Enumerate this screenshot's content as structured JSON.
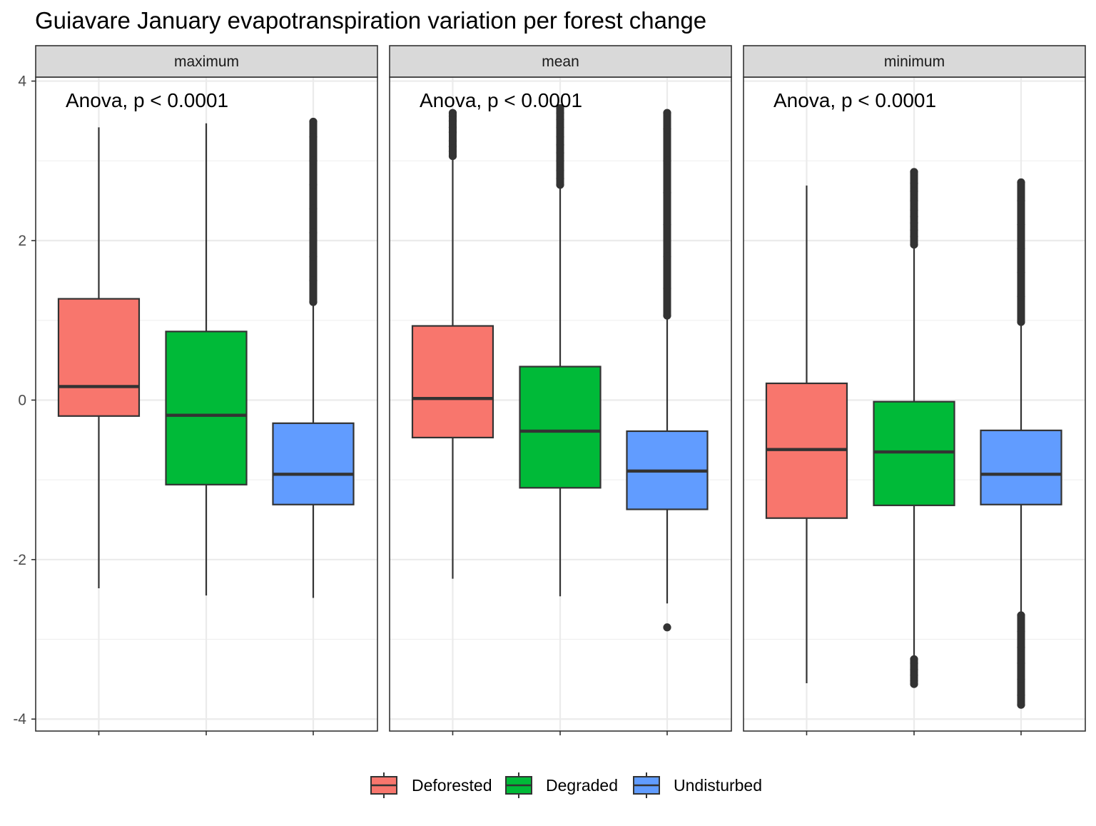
{
  "chart_data": {
    "type": "box",
    "title": "Guiavare January evapotranspiration variation per forest change",
    "xlabel": "",
    "ylabel": "",
    "ylim": [
      -4.15,
      4.05
    ],
    "y_ticks": [
      -4,
      -2,
      0,
      2,
      4
    ],
    "y_tick_labels": [
      "-4",
      "-2",
      "0",
      "2",
      "4"
    ],
    "grid": true,
    "legend_position": "bottom",
    "categories": [
      "Deforested",
      "Degraded",
      "Undisturbed"
    ],
    "colors": {
      "Deforested": "#F8766D",
      "Degraded": "#00BA38",
      "Undisturbed": "#619CFF"
    },
    "panels": [
      {
        "label": "maximum",
        "annotation": "Anova, p < 0.0001",
        "boxes": [
          {
            "group": "Deforested",
            "whisker_low": -2.36,
            "q1": -0.2,
            "median": 0.17,
            "q3": 1.27,
            "whisker_high": 3.42,
            "outliers_low": [],
            "outliers_high": []
          },
          {
            "group": "Degraded",
            "whisker_low": -2.45,
            "q1": -1.06,
            "median": -0.19,
            "q3": 0.86,
            "whisker_high": 3.47,
            "outliers_low": [],
            "outliers_high": []
          },
          {
            "group": "Undisturbed",
            "whisker_low": -2.48,
            "q1": -1.31,
            "median": -0.93,
            "q3": -0.29,
            "whisker_high": 1.23,
            "outliers_low": [],
            "outliers_high": [
              1.23,
              1.5,
              1.8,
              2.1,
              2.4,
              2.7,
              3.0,
              3.3,
              3.49
            ]
          }
        ]
      },
      {
        "label": "mean",
        "annotation": "Anova, p < 0.0001",
        "boxes": [
          {
            "group": "Deforested",
            "whisker_low": -2.24,
            "q1": -0.47,
            "median": 0.02,
            "q3": 0.93,
            "whisker_high": 3.05,
            "outliers_low": [],
            "outliers_high": [
              3.06,
              3.12,
              3.18,
              3.25,
              3.36,
              3.42,
              3.5,
              3.56,
              3.6
            ]
          },
          {
            "group": "Degraded",
            "whisker_low": -2.46,
            "q1": -1.1,
            "median": -0.39,
            "q3": 0.42,
            "whisker_high": 2.68,
            "outliers_low": [],
            "outliers_high": [
              2.7,
              2.78,
              2.88,
              3.0,
              3.1,
              3.2,
              3.3,
              3.42,
              3.52,
              3.6,
              3.66
            ]
          },
          {
            "group": "Undisturbed",
            "whisker_low": -2.55,
            "q1": -1.37,
            "median": -0.89,
            "q3": -0.39,
            "whisker_high": 1.05,
            "outliers_low": [
              -2.85
            ],
            "outliers_high": [
              1.06,
              1.4,
              1.8,
              2.2,
              2.6,
              3.0,
              3.4,
              3.6
            ]
          }
        ]
      },
      {
        "label": "minimum",
        "annotation": "Anova, p < 0.0001",
        "boxes": [
          {
            "group": "Deforested",
            "whisker_low": -3.55,
            "q1": -1.48,
            "median": -0.62,
            "q3": 0.21,
            "whisker_high": 2.69,
            "outliers_low": [],
            "outliers_high": []
          },
          {
            "group": "Degraded",
            "whisker_low": -3.22,
            "q1": -1.32,
            "median": -0.65,
            "q3": -0.02,
            "whisker_high": 1.92,
            "outliers_low": [
              -3.25,
              -3.3,
              -3.38,
              -3.45,
              -3.52,
              -3.56
            ],
            "outliers_high": [
              1.95,
              2.05,
              2.13,
              2.22,
              2.3,
              2.38,
              2.5,
              2.62,
              2.72,
              2.86
            ]
          },
          {
            "group": "Undisturbed",
            "whisker_low": -2.68,
            "q1": -1.31,
            "median": -0.93,
            "q3": -0.38,
            "whisker_high": 0.97,
            "outliers_low": [
              -2.7,
              -2.9,
              -3.1,
              -3.3,
              -3.5,
              -3.7,
              -3.82
            ],
            "outliers_high": [
              0.98,
              1.3,
              1.6,
              1.9,
              2.2,
              2.5,
              2.73
            ]
          }
        ]
      }
    ]
  }
}
